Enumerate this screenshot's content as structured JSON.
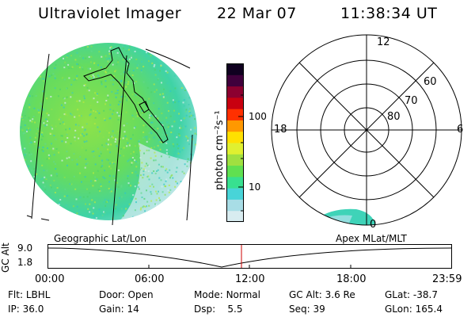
{
  "header": {
    "instrument": "Ultraviolet Imager",
    "date": "22 Mar 07",
    "time": "11:38:34 UT"
  },
  "colorbar": {
    "unit_label": "photon cm⁻²s⁻¹",
    "tick_100": "100",
    "tick_10": "10",
    "colors": [
      "#d8ecf0",
      "#a8dde6",
      "#48d4d8",
      "#38e090",
      "#60e050",
      "#a0e040",
      "#e0f030",
      "#ffe000",
      "#ff9800",
      "#ff3000",
      "#c80010",
      "#8c0030",
      "#40003c",
      "#100020"
    ]
  },
  "polar": {
    "mlt_12": "12",
    "mlt_18": "18",
    "mlt_6": "6",
    "mlt_0": "0",
    "lat_60": "60",
    "lat_70": "70",
    "lat_80": "80"
  },
  "orbit_plot": {
    "left_label": "Geographic Lat/Lon",
    "right_label": "Apex MLat/MLT",
    "axis_label": "GC Alt",
    "y_top": "9.0",
    "y_bottom": "1.8",
    "x_ticks": [
      "00:00",
      "06:00",
      "12:00",
      "18:00",
      "23:59"
    ],
    "marker_color": "#cc0000"
  },
  "info": {
    "filter_label": "Flt:",
    "filter_value": "LBHL",
    "door_label": "Door:",
    "door_value": "Open",
    "mode_label": "Mode:",
    "mode_value": "Normal",
    "gcalt_label": "GC Alt:",
    "gcalt_value": "3.6 Re",
    "glat_label": "GLat:",
    "glat_value": "-38.7",
    "ip_label": "IP:",
    "ip_value": "36.0",
    "gain_label": "Gain:",
    "gain_value": "14",
    "dsp_label": "Dsp:",
    "dsp_value": "5.5",
    "seq_label": "Seq:",
    "seq_value": "39",
    "glon_label": "GLon:",
    "glon_value": "165.4"
  }
}
